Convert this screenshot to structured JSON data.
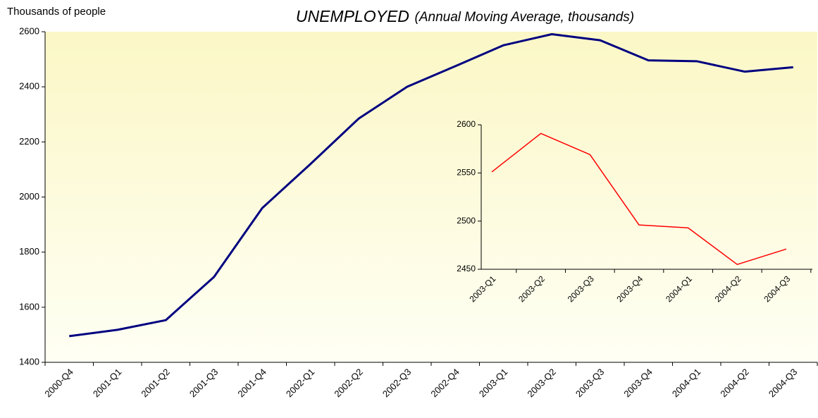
{
  "chart_data": [
    {
      "type": "line",
      "title": "UNEMPLOYED",
      "subtitle": "(Annual Moving Average, thousands)",
      "ylabel": "Thousands of people",
      "categories": [
        "2000-Q4",
        "2001-Q1",
        "2001-Q2",
        "2001-Q3",
        "2001-Q4",
        "2002-Q1",
        "2002-Q2",
        "2002-Q3",
        "2002-Q4",
        "2003-Q1",
        "2003-Q2",
        "2003-Q3",
        "2003-Q4",
        "2004-Q1",
        "2004-Q2",
        "2004-Q3"
      ],
      "values": [
        1495,
        1518,
        1553,
        1710,
        1960,
        2120,
        2285,
        2400,
        2475,
        2551,
        2591,
        2569,
        2496,
        2493,
        2455,
        2471
      ],
      "color": "#000080",
      "ylim": [
        1400,
        2600
      ],
      "yticks": [
        1400,
        1600,
        1800,
        2000,
        2200,
        2400,
        2600
      ]
    },
    {
      "type": "line",
      "categories": [
        "2003-Q1",
        "2003-Q2",
        "2003-Q3",
        "2003-Q4",
        "2004-Q1",
        "2004-Q2",
        "2004-Q3"
      ],
      "values": [
        2551,
        2591,
        2569,
        2496,
        2493,
        2455,
        2471
      ],
      "color": "#ff0000",
      "ylim": [
        2450,
        2600
      ],
      "yticks": [
        2450,
        2500,
        2550,
        2600
      ]
    }
  ]
}
